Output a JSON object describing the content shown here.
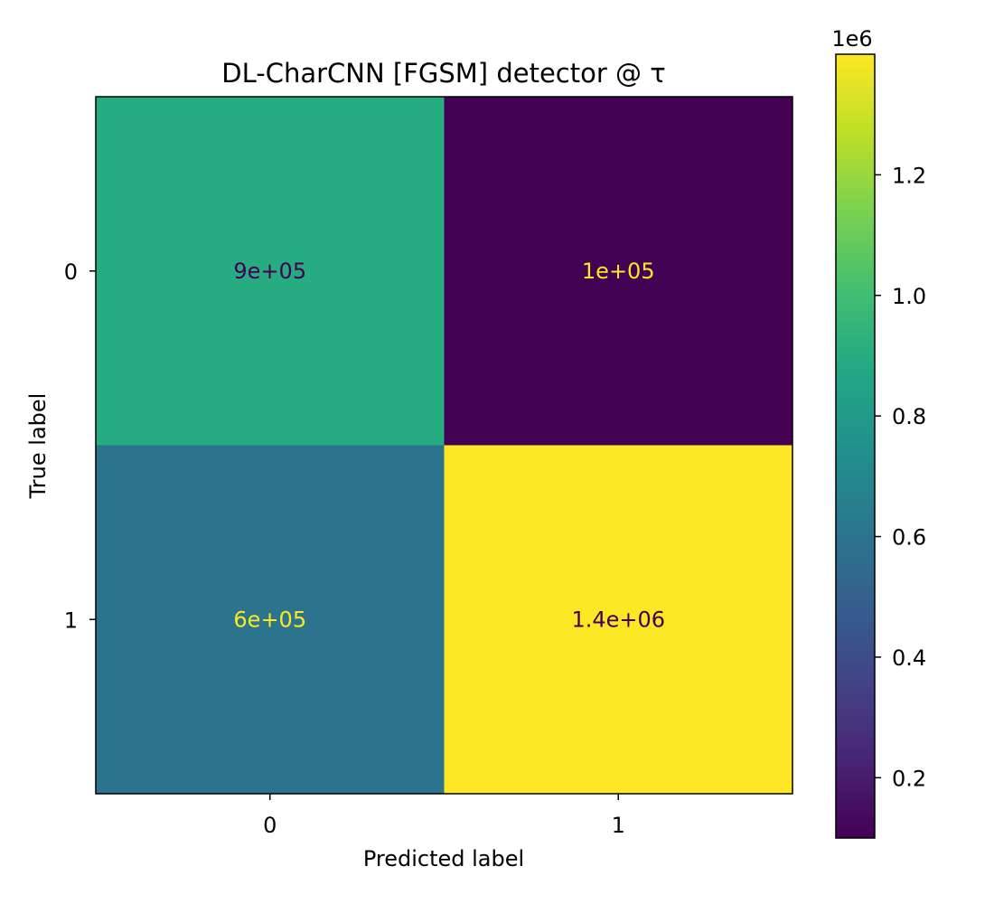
{
  "chart_data": {
    "type": "heatmap",
    "title": "DL-CharCNN [FGSM] detector @ τ",
    "xlabel": "Predicted label",
    "ylabel": "True label",
    "x_categories": [
      "0",
      "1"
    ],
    "y_categories": [
      "0",
      "1"
    ],
    "values": [
      [
        900000,
        100000
      ],
      [
        600000,
        1400000
      ]
    ],
    "cell_labels": [
      [
        "9e+05",
        "1e+05"
      ],
      [
        "6e+05",
        "1.4e+06"
      ]
    ],
    "colormap": "viridis",
    "colorbar": {
      "range": [
        100000,
        1400000
      ],
      "ticks": [
        200000,
        400000,
        600000,
        800000,
        1000000,
        1200000
      ],
      "tick_labels": [
        "0.2",
        "0.4",
        "0.6",
        "0.8",
        "1.0",
        "1.2"
      ],
      "scale_label": "1e6"
    },
    "colors": {
      "text_dark": "#440154",
      "text_light": "#fde725"
    }
  }
}
